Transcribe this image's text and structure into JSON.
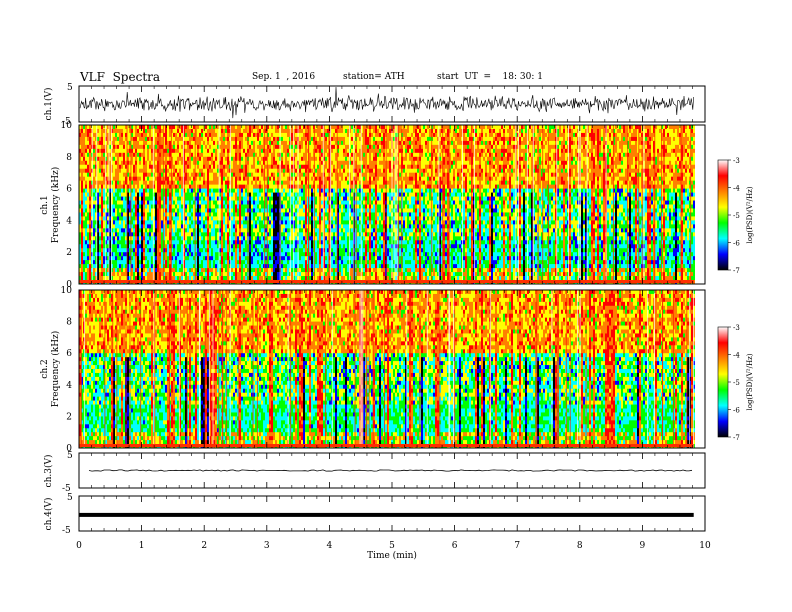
{
  "header": {
    "title": "VLF  Spectra",
    "date": "Sep. 1  , 2016",
    "station": "station= ATH",
    "start": "start  UT  =    18: 30: 1"
  },
  "chart_data": {
    "type": "heatmap",
    "x": {
      "label": "Time  (min)",
      "range": [
        0,
        10
      ],
      "ticks": [
        "0",
        "1",
        "2",
        "3",
        "4",
        "5",
        "6",
        "7",
        "8",
        "9",
        "10"
      ],
      "data_end": 9.82
    },
    "panels": [
      {
        "name": "ch1_waveform",
        "type": "line",
        "ylabel": "ch.1(V)",
        "ylim": [
          -5,
          5
        ],
        "ticks": [
          "5",
          "-5"
        ]
      },
      {
        "name": "ch1_spectrogram",
        "type": "heatmap",
        "ylabel_top": "ch.1",
        "ylabel": "Frequency  (kHz)",
        "ylim": [
          0,
          10
        ],
        "ticks": [
          "0",
          "2",
          "4",
          "6",
          "8",
          "10"
        ]
      },
      {
        "name": "ch2_spectrogram",
        "type": "heatmap",
        "ylabel_top": "ch.2",
        "ylabel": "Frequency  (kHz)",
        "ylim": [
          0,
          10
        ],
        "ticks": [
          "0",
          "2",
          "4",
          "6",
          "8",
          "10"
        ]
      },
      {
        "name": "ch3_waveform",
        "type": "line",
        "ylabel": "ch.3(V)",
        "ylim": [
          -5,
          5
        ],
        "ticks": [
          "5",
          "-5"
        ],
        "level": 0
      },
      {
        "name": "ch4_waveform",
        "type": "line",
        "ylabel": "ch.4(V)",
        "ylim": [
          -5,
          5
        ],
        "ticks": [
          "5",
          "-5"
        ],
        "level": -0.4
      }
    ],
    "colorbar": {
      "label": "log(PSD)(V²/Hz)",
      "range": [
        -7,
        -3
      ],
      "ticks": [
        "-3",
        "-4",
        "-5",
        "-6",
        "-7"
      ],
      "colors": [
        "#000000",
        "#0000ff",
        "#00ffff",
        "#00ff00",
        "#ffff00",
        "#ff7f00",
        "#ff0000",
        "#ffffff"
      ]
    }
  }
}
